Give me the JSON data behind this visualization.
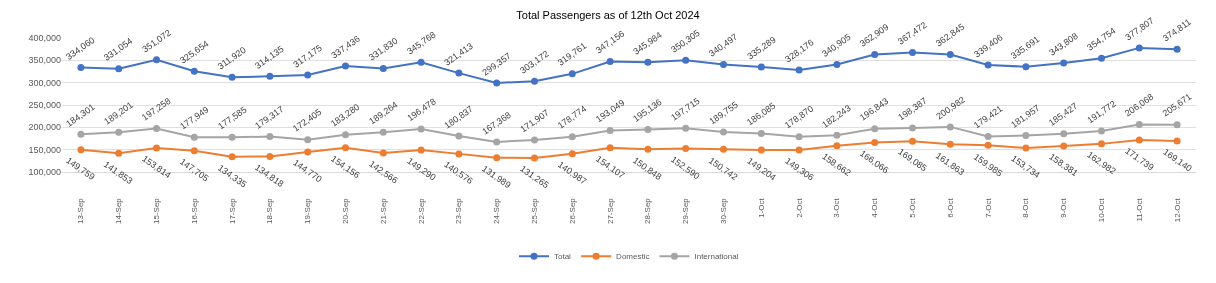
{
  "chart_data": {
    "type": "line",
    "title": "Total Passengers as of 12th Oct 2024",
    "categories": [
      "13-Sep",
      "14-Sep",
      "15-Sep",
      "16-Sep",
      "17-Sep",
      "18-Sep",
      "19-Sep",
      "20-Sep",
      "21-Sep",
      "22-Sep",
      "23-Sep",
      "24-Sep",
      "25-Sep",
      "26-Sep",
      "27-Sep",
      "28-Sep",
      "29-Sep",
      "30-Sep",
      "1-Oct",
      "2-Oct",
      "3-Oct",
      "4-Oct",
      "5-Oct",
      "6-Oct",
      "7-Oct",
      "8-Oct",
      "9-Oct",
      "10-Oct",
      "11-Oct",
      "12-Oct"
    ],
    "series": [
      {
        "name": "Total",
        "color": "#4472c4",
        "values": [
          334060,
          331054,
          351072,
          325654,
          311920,
          314135,
          317175,
          337436,
          331830,
          345768,
          321413,
          299357,
          303172,
          319761,
          347156,
          345984,
          350305,
          340497,
          335289,
          328176,
          340905,
          362909,
          367472,
          362845,
          339406,
          335691,
          343808,
          354754,
          377807,
          374811
        ],
        "value_labels": [
          "334,060",
          "331,054",
          "351,072",
          "325,654",
          "311,920",
          "314,135",
          "317,175",
          "337,436",
          "331,830",
          "345,768",
          "321,413",
          "299,357",
          "303,172",
          "319,761",
          "347,156",
          "345,984",
          "350,305",
          "340,497",
          "335,289",
          "328,176",
          "340,905",
          "362,909",
          "367,472",
          "362,845",
          "339,406",
          "335,691",
          "343,808",
          "354,754",
          "377,807",
          "374,811"
        ]
      },
      {
        "name": "Domestic",
        "color": "#ed7d31",
        "values": [
          149759,
          141853,
          153814,
          147705,
          134335,
          134818,
          144770,
          154156,
          142566,
          149290,
          140576,
          131989,
          131265,
          140987,
          154107,
          150848,
          152590,
          150742,
          149204,
          149306,
          158662,
          166066,
          169085,
          161863,
          159985,
          153734,
          158381,
          162982,
          171739,
          169140
        ],
        "value_labels": [
          "149,759",
          "141,853",
          "153,814",
          "147,705",
          "134,335",
          "134,818",
          "144,770",
          "154,156",
          "142,566",
          "149,290",
          "140,576",
          "131,989",
          "131,265",
          "140,987",
          "154,107",
          "150,848",
          "152,590",
          "150,742",
          "149,204",
          "149,306",
          "158,662",
          "166,066",
          "169,085",
          "161,863",
          "159,985",
          "153,734",
          "158,381",
          "162,982",
          "171,739",
          "169,140"
        ]
      },
      {
        "name": "International",
        "color": "#a5a5a5",
        "values": [
          184301,
          189201,
          197258,
          177949,
          177585,
          179317,
          172405,
          183280,
          189264,
          196478,
          180837,
          167368,
          171907,
          178774,
          193049,
          195136,
          197715,
          189755,
          186085,
          178870,
          182243,
          196843,
          198387,
          200982,
          179421,
          181957,
          185427,
          191772,
          206068,
          205671
        ],
        "value_labels": [
          "184,301",
          "189,201",
          "197,258",
          "177,949",
          "177,585",
          "179,317",
          "172,405",
          "183,280",
          "189,264",
          "196,478",
          "180,837",
          "167,368",
          "171,907",
          "178,774",
          "193,049",
          "195,136",
          "197,715",
          "189,755",
          "186,085",
          "178,870",
          "182,243",
          "196,843",
          "198,387",
          "200,982",
          "179,421",
          "181,957",
          "185,427",
          "191,772",
          "206,068",
          "205,671"
        ]
      }
    ],
    "ylim": [
      100000,
      400000
    ],
    "yticks": [
      {
        "value": 100000,
        "label": "100,000"
      },
      {
        "value": 150000,
        "label": "150,000"
      },
      {
        "value": 200000,
        "label": "200,000"
      },
      {
        "value": 250000,
        "label": "250,000"
      },
      {
        "value": 300000,
        "label": "300,000"
      },
      {
        "value": 350000,
        "label": "350,000"
      },
      {
        "value": 400000,
        "label": "400,000"
      }
    ],
    "grid": "y",
    "legend": "bottom",
    "marker": "circle",
    "line_style": "solid"
  }
}
